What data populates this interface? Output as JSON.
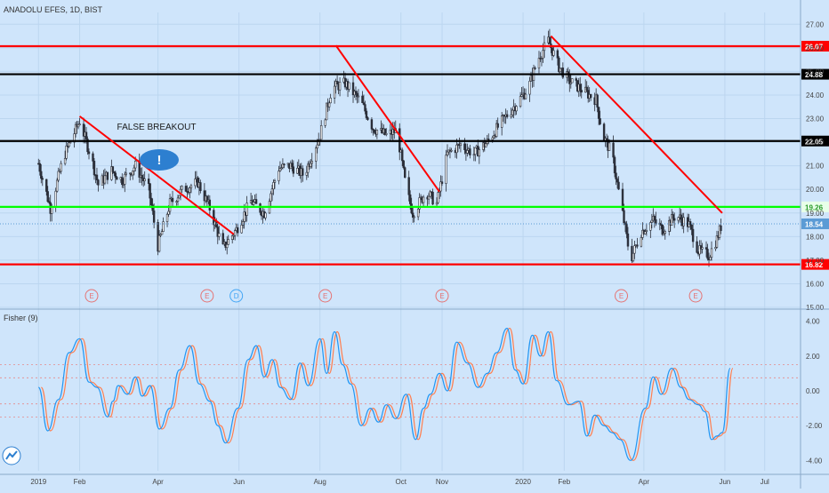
{
  "header": {
    "title": "ANADOLU EFES, 1D, BIST"
  },
  "annotation": {
    "label": "FALSE BREAKOUT",
    "badge_glyph": "!"
  },
  "colors": {
    "background": "#cfe5fb",
    "up_candle": "#2a2e39",
    "down_candle": "#2a2e39",
    "resistance": "#ff0000",
    "key_level": "#000000",
    "support_green": "#00ff00",
    "last_price": "#5b9bd5",
    "fisher_fast": "#2196f3",
    "fisher_slow": "#ff7f50",
    "earnings": "#e57373",
    "dividend": "#42a5f5"
  },
  "chart_data": [
    {
      "type": "candlestick",
      "title": "ANADOLU EFES, 1D, BIST",
      "ylim": [
        15.0,
        27.5
      ],
      "y_ticks": [
        "15.00",
        "16.00",
        "17.00",
        "18.00",
        "19.00",
        "20.00",
        "21.00",
        "22.00",
        "23.00",
        "24.00",
        "25.00",
        "26.00",
        "27.00"
      ],
      "x_ticks": [
        "2019",
        "Feb",
        "Apr",
        "Jun",
        "Aug",
        "Oct",
        "Nov",
        "2020",
        "Feb",
        "Apr",
        "Jun",
        "Jul"
      ],
      "price_path": [
        [
          "2019-01-01",
          21.1
        ],
        [
          "2019-01-10",
          19.2
        ],
        [
          "2019-01-20",
          21.4
        ],
        [
          "2019-02-01",
          22.9
        ],
        [
          "2019-02-10",
          21.3
        ],
        [
          "2019-02-15",
          20.2
        ],
        [
          "2019-02-25",
          20.8
        ],
        [
          "2019-03-05",
          20.4
        ],
        [
          "2019-03-15",
          21.0
        ],
        [
          "2019-03-25",
          20.0
        ],
        [
          "2019-04-01",
          17.6
        ],
        [
          "2019-04-10",
          19.4
        ],
        [
          "2019-04-20",
          20.0
        ],
        [
          "2019-05-01",
          20.3
        ],
        [
          "2019-05-10",
          19.2
        ],
        [
          "2019-05-20",
          17.5
        ],
        [
          "2019-05-30",
          18.3
        ],
        [
          "2019-06-10",
          19.5
        ],
        [
          "2019-06-20",
          19.0
        ],
        [
          "2019-07-01",
          20.9
        ],
        [
          "2019-07-10",
          21.0
        ],
        [
          "2019-07-20",
          20.6
        ],
        [
          "2019-08-01",
          22.3
        ],
        [
          "2019-08-10",
          24.3
        ],
        [
          "2019-08-20",
          24.5
        ],
        [
          "2019-09-01",
          23.7
        ],
        [
          "2019-09-10",
          22.6
        ],
        [
          "2019-09-20",
          22.3
        ],
        [
          "2019-09-28",
          22.5
        ],
        [
          "2019-10-05",
          20.0
        ],
        [
          "2019-10-10",
          19.0
        ],
        [
          "2019-10-20",
          19.9
        ],
        [
          "2019-10-28",
          19.4
        ],
        [
          "2019-11-05",
          21.5
        ],
        [
          "2019-11-15",
          21.9
        ],
        [
          "2019-11-25",
          21.5
        ],
        [
          "2019-12-05",
          22.0
        ],
        [
          "2019-12-15",
          22.8
        ],
        [
          "2019-12-25",
          23.5
        ],
        [
          "2020-01-05",
          24.3
        ],
        [
          "2020-01-12",
          25.5
        ],
        [
          "2020-01-20",
          26.3
        ],
        [
          "2020-01-28",
          25.2
        ],
        [
          "2020-02-05",
          24.6
        ],
        [
          "2020-02-15",
          24.2
        ],
        [
          "2020-02-25",
          23.8
        ],
        [
          "2020-03-01",
          22.3
        ],
        [
          "2020-03-08",
          21.5
        ],
        [
          "2020-03-15",
          19.3
        ],
        [
          "2020-03-22",
          17.0
        ],
        [
          "2020-03-30",
          18.2
        ],
        [
          "2020-04-08",
          18.7
        ],
        [
          "2020-04-15",
          18.3
        ],
        [
          "2020-04-25",
          18.9
        ],
        [
          "2020-05-05",
          18.5
        ],
        [
          "2020-05-12",
          17.4
        ],
        [
          "2020-05-20",
          17.2
        ],
        [
          "2020-05-26",
          17.9
        ],
        [
          "2020-05-30",
          18.6
        ]
      ],
      "lines": [
        {
          "name": "resistance-26.07",
          "kind": "hline",
          "price": 26.07,
          "color": "#ff0000",
          "label": "26.07"
        },
        {
          "name": "level-24.88",
          "kind": "hline",
          "price": 24.88,
          "color": "#000000",
          "label": "24.88"
        },
        {
          "name": "level-22.05",
          "kind": "hline",
          "price": 22.05,
          "color": "#000000",
          "label": "22.05"
        },
        {
          "name": "level-19.26",
          "kind": "hline",
          "price": 19.26,
          "color": "#00ff00",
          "label": "19.26"
        },
        {
          "name": "last-price",
          "kind": "hline",
          "price": 18.54,
          "color": "#5b9bd5",
          "label": "18.54"
        },
        {
          "name": "support-16.82",
          "kind": "hline",
          "price": 16.82,
          "color": "#ff0000",
          "label": "16.82"
        },
        {
          "name": "trendline-1",
          "kind": "segment",
          "color": "#ff0000",
          "points": [
            [
              "2019-02-01",
              23.1
            ],
            [
              "2019-05-28",
              18.1
            ]
          ]
        },
        {
          "name": "trendline-2",
          "kind": "segment",
          "color": "#ff0000",
          "points": [
            [
              "2019-08-13",
              26.1
            ],
            [
              "2019-10-30",
              19.9
            ]
          ]
        },
        {
          "name": "trendline-3",
          "kind": "segment",
          "color": "#ff0000",
          "points": [
            [
              "2020-01-22",
              26.5
            ],
            [
              "2020-05-30",
              19.0
            ]
          ]
        }
      ],
      "events": [
        {
          "date": "2019-02-10",
          "letter": "E",
          "kind": "earnings"
        },
        {
          "date": "2019-05-08",
          "letter": "E",
          "kind": "earnings"
        },
        {
          "date": "2019-05-30",
          "letter": "D",
          "kind": "dividend"
        },
        {
          "date": "2019-08-05",
          "letter": "E",
          "kind": "earnings"
        },
        {
          "date": "2019-11-01",
          "letter": "E",
          "kind": "earnings"
        },
        {
          "date": "2020-03-15",
          "letter": "E",
          "kind": "earnings"
        },
        {
          "date": "2020-05-10",
          "letter": "E",
          "kind": "earnings"
        }
      ]
    },
    {
      "type": "line",
      "title": "Fisher (9)",
      "ylim": [
        -4.6,
        4.6
      ],
      "y_ticks": [
        "4.00",
        "2.00",
        "0.00",
        "-2.00",
        "-4.00"
      ],
      "reference_levels": [
        1.5,
        0.75,
        -0.75,
        -1.5
      ],
      "series": [
        {
          "name": "Fisher",
          "color": "#2196f3",
          "points": [
            [
              "2019-01-01",
              0.2
            ],
            [
              "2019-01-08",
              -2.3
            ],
            [
              "2019-01-16",
              -0.5
            ],
            [
              "2019-01-24",
              2.2
            ],
            [
              "2019-02-01",
              3.0
            ],
            [
              "2019-02-08",
              0.5
            ],
            [
              "2019-02-14",
              0.2
            ],
            [
              "2019-02-22",
              -1.5
            ],
            [
              "2019-02-26",
              -0.6
            ],
            [
              "2019-03-02",
              0.3
            ],
            [
              "2019-03-09",
              -0.2
            ],
            [
              "2019-03-15",
              0.8
            ],
            [
              "2019-03-20",
              -0.3
            ],
            [
              "2019-03-26",
              0.3
            ],
            [
              "2019-04-02",
              -2.2
            ],
            [
              "2019-04-10",
              -1.0
            ],
            [
              "2019-04-17",
              1.2
            ],
            [
              "2019-04-25",
              2.6
            ],
            [
              "2019-05-02",
              0.4
            ],
            [
              "2019-05-10",
              -0.6
            ],
            [
              "2019-05-16",
              -2.0
            ],
            [
              "2019-05-22",
              -3.0
            ],
            [
              "2019-05-31",
              -1.0
            ],
            [
              "2019-06-08",
              1.8
            ],
            [
              "2019-06-14",
              2.6
            ],
            [
              "2019-06-20",
              0.8
            ],
            [
              "2019-06-26",
              1.8
            ],
            [
              "2019-07-02",
              0.2
            ],
            [
              "2019-07-10",
              -0.5
            ],
            [
              "2019-07-17",
              1.6
            ],
            [
              "2019-07-23",
              0.3
            ],
            [
              "2019-08-01",
              3.0
            ],
            [
              "2019-08-06",
              1.0
            ],
            [
              "2019-08-12",
              3.4
            ],
            [
              "2019-08-18",
              1.5
            ],
            [
              "2019-08-24",
              0.4
            ],
            [
              "2019-09-01",
              -2.0
            ],
            [
              "2019-09-08",
              -1.0
            ],
            [
              "2019-09-14",
              -1.8
            ],
            [
              "2019-09-20",
              -0.8
            ],
            [
              "2019-09-27",
              -1.6
            ],
            [
              "2019-10-05",
              -0.2
            ],
            [
              "2019-10-12",
              -2.8
            ],
            [
              "2019-10-18",
              -1.0
            ],
            [
              "2019-10-23",
              -0.2
            ],
            [
              "2019-10-30",
              1.0
            ],
            [
              "2019-11-05",
              0.0
            ],
            [
              "2019-11-12",
              2.8
            ],
            [
              "2019-11-20",
              1.6
            ],
            [
              "2019-11-28",
              0.2
            ],
            [
              "2019-12-05",
              1.0
            ],
            [
              "2019-12-12",
              2.2
            ],
            [
              "2019-12-20",
              3.6
            ],
            [
              "2019-12-26",
              1.2
            ],
            [
              "2020-01-01",
              0.4
            ],
            [
              "2020-01-08",
              3.2
            ],
            [
              "2020-01-14",
              2.0
            ],
            [
              "2020-01-20",
              3.4
            ],
            [
              "2020-01-26",
              0.6
            ],
            [
              "2020-02-04",
              -0.8
            ],
            [
              "2020-02-12",
              -0.6
            ],
            [
              "2020-02-18",
              -2.6
            ],
            [
              "2020-02-24",
              -1.4
            ],
            [
              "2020-03-02",
              -2.0
            ],
            [
              "2020-03-08",
              -2.4
            ],
            [
              "2020-03-14",
              -2.8
            ],
            [
              "2020-03-22",
              -4.0
            ],
            [
              "2020-04-02",
              -1.0
            ],
            [
              "2020-04-08",
              0.8
            ],
            [
              "2020-04-14",
              -0.2
            ],
            [
              "2020-04-22",
              1.3
            ],
            [
              "2020-04-29",
              0.2
            ],
            [
              "2020-05-05",
              -0.5
            ],
            [
              "2020-05-12",
              -0.8
            ],
            [
              "2020-05-17",
              -1.2
            ],
            [
              "2020-05-22",
              -2.8
            ],
            [
              "2020-05-26",
              -2.6
            ],
            [
              "2020-05-30",
              -2.4
            ],
            [
              "2020-06-05",
              1.3
            ]
          ]
        }
      ]
    }
  ]
}
